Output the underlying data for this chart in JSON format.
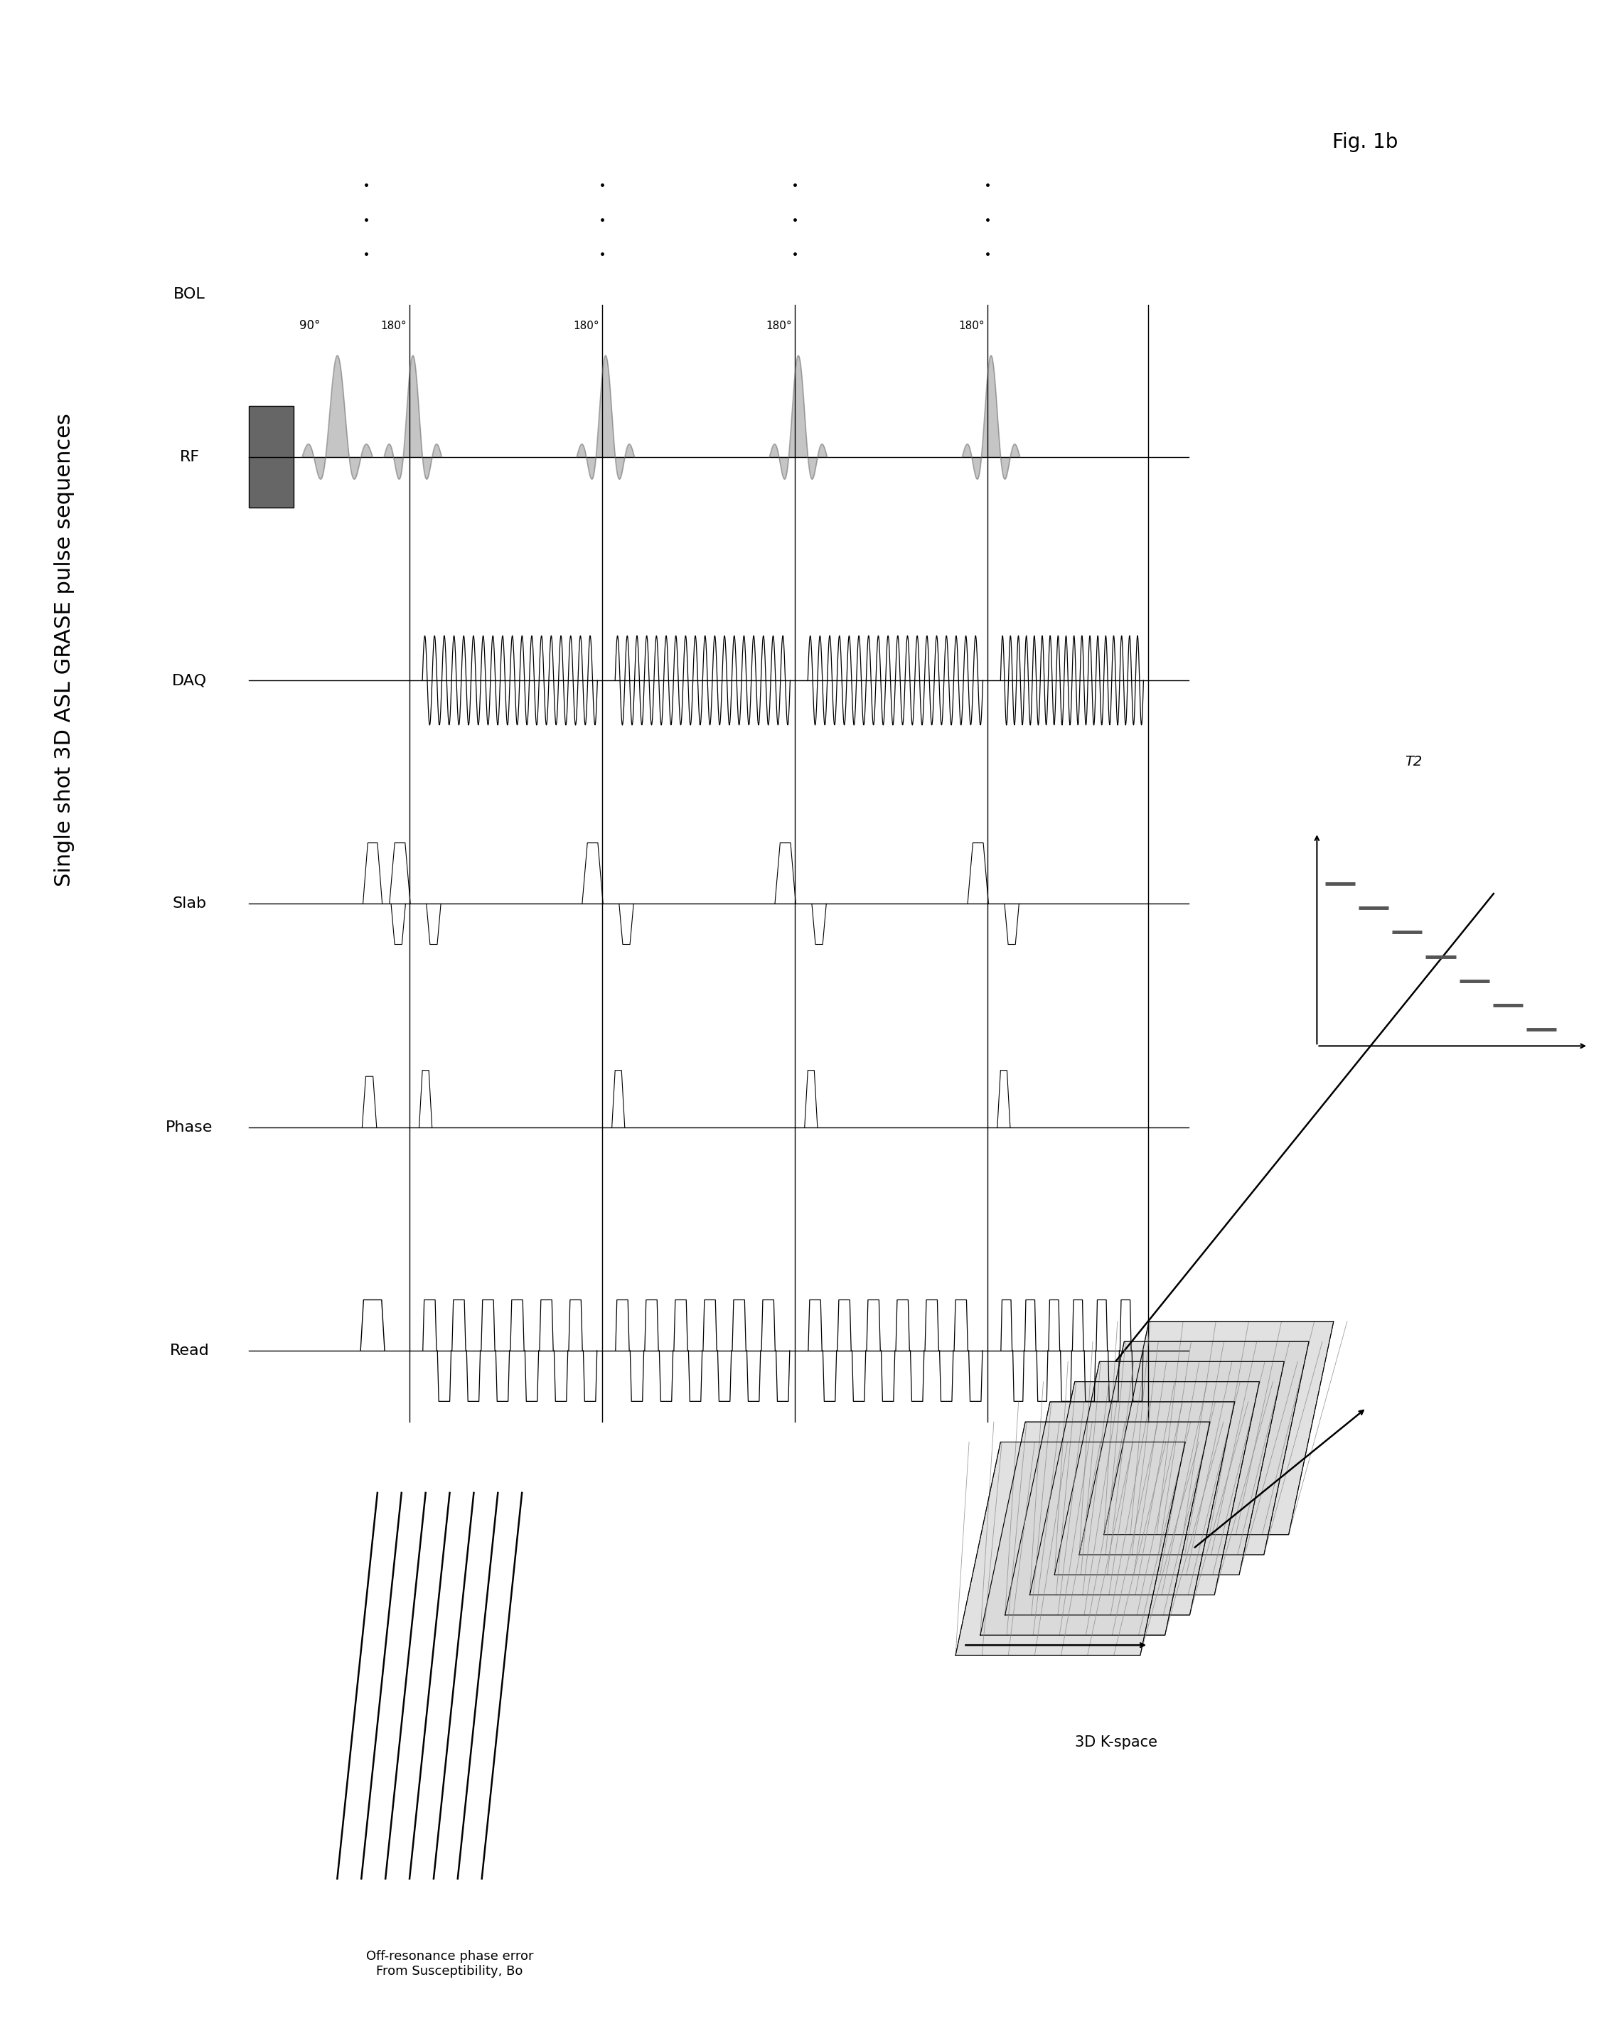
{
  "title": "Single shot 3D ASL GRASE pulse sequences",
  "fig_label": "Fig. 1b",
  "background_color": "#ffffff",
  "row_labels": [
    "RF",
    "DAQ",
    "Slab",
    "Phase",
    "Read"
  ],
  "title_fontsize": 22,
  "label_fontsize": 16
}
